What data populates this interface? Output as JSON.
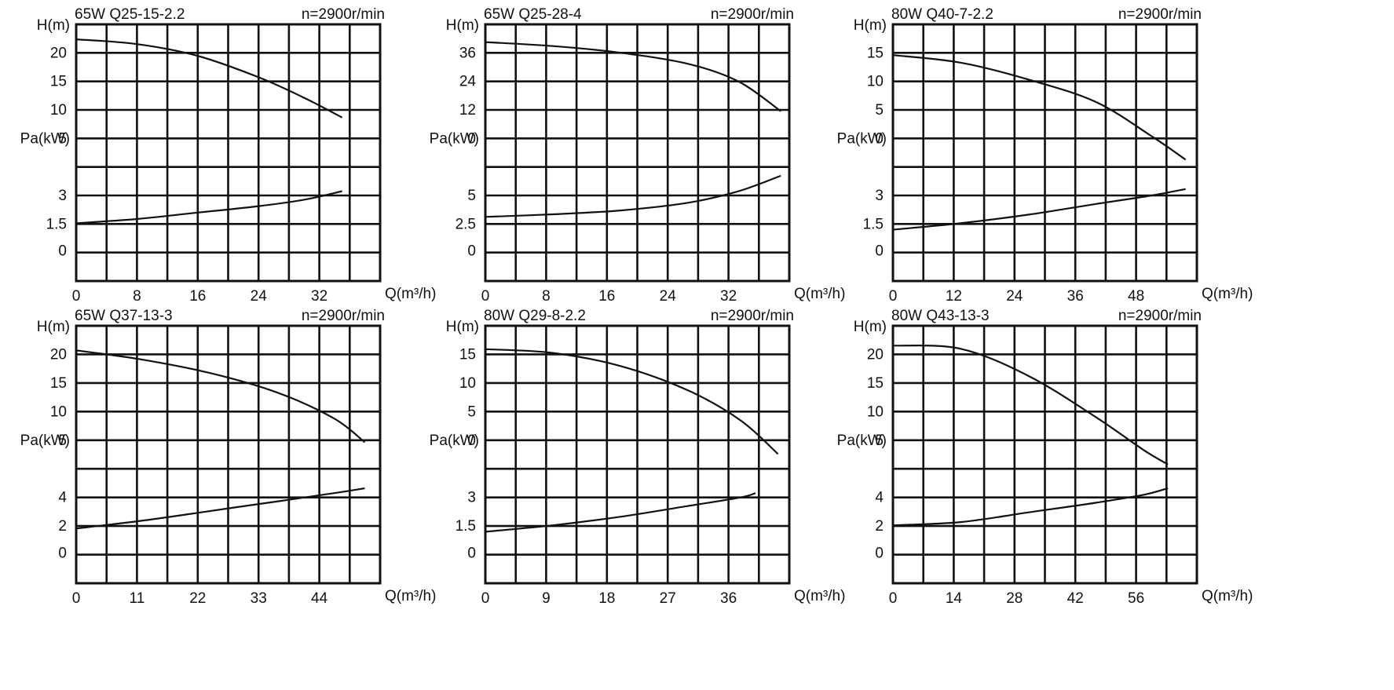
{
  "charts": [
    {
      "chart_data": {
        "type": "line",
        "model": "65W Q25-15-2.2",
        "speed": "n=2900r/min",
        "head_label": "H(m)",
        "power_label": "Pa(kW)",
        "flow_label": "Q(m³/h)",
        "x_ticks": [
          "0",
          "8",
          "16",
          "24",
          "32"
        ],
        "x_range": [
          0,
          40
        ],
        "head_ticks": [
          "20",
          "15",
          "10",
          "5"
        ],
        "power_ticks": [
          "3",
          "1.5",
          "0"
        ],
        "head_range": [
          -10,
          22.5
        ],
        "power_range": [
          0,
          6
        ],
        "series": [
          {
            "x": [
              0,
              8,
              16,
              24,
              30,
              35
            ],
            "values": [
              20.6,
              20,
              18.5,
              15.8,
              13.2,
              10.7
            ]
          },
          {
            "x": [
              0,
              8,
              16,
              24,
              30,
              35
            ],
            "values": [
              1.35,
              1.45,
              1.6,
              1.75,
              1.9,
              2.1
            ]
          }
        ]
      }
    },
    {
      "chart_data": {
        "type": "line",
        "model": "65W Q25-28-4",
        "speed": "n=2900r/min",
        "head_label": "H(m)",
        "power_label": "Pa(kW)",
        "flow_label": "Q(m³/h)",
        "x_ticks": [
          "0",
          "8",
          "16",
          "24",
          "32"
        ],
        "x_range": [
          0,
          36
        ],
        "head_ticks": [
          "36",
          "24",
          "12",
          "0"
        ],
        "power_ticks": [
          "5",
          "2.5",
          "0"
        ],
        "head_range": [
          -24,
          41
        ],
        "power_range": [
          0,
          10
        ],
        "series": [
          {
            "x": [
              0,
              8,
              16,
              24,
              30,
              35
            ],
            "values": [
              36.5,
              35.5,
              33.8,
              31,
              26.5,
              19
            ]
          },
          {
            "x": [
              0,
              8,
              16,
              24,
              30,
              35
            ],
            "values": [
              2.5,
              2.6,
              2.75,
              3.05,
              3.5,
              4.1
            ]
          }
        ]
      }
    },
    {
      "chart_data": {
        "type": "line",
        "model": "80W Q40-7-2.2",
        "speed": "n=2900r/min",
        "head_label": "H(m)",
        "power_label": "Pa(kW)",
        "flow_label": "Q(m³/h)",
        "x_ticks": [
          "0",
          "12",
          "24",
          "36",
          "48"
        ],
        "x_range": [
          0,
          54
        ],
        "head_ticks": [
          "15",
          "10",
          "5",
          "0"
        ],
        "power_ticks": [
          "3",
          "1.5",
          "0"
        ],
        "head_range": [
          -10,
          17.5
        ],
        "power_range": [
          0,
          6
        ],
        "series": [
          {
            "x": [
              0,
              12,
              24,
              36,
              46,
              52
            ],
            "values": [
              14.2,
              13.4,
              11.6,
              9.2,
              5.5,
              3
            ]
          },
          {
            "x": [
              0,
              12,
              24,
              36,
              46,
              52
            ],
            "values": [
              1.2,
              1.35,
              1.55,
              1.8,
              2,
              2.15
            ]
          }
        ]
      }
    },
    {
      "chart_data": {
        "type": "line",
        "model": "65W Q37-13-3",
        "speed": "n=2900r/min",
        "head_label": "H(m)",
        "power_label": "Pa(kW)",
        "flow_label": "Q(m³/h)",
        "x_ticks": [
          "0",
          "11",
          "22",
          "33",
          "44"
        ],
        "x_range": [
          0,
          49.5
        ],
        "head_ticks": [
          "20",
          "15",
          "10",
          "5"
        ],
        "power_ticks": [
          "4",
          "2",
          "0"
        ],
        "head_range": [
          -10,
          22.5
        ],
        "power_range": [
          0,
          8
        ],
        "series": [
          {
            "x": [
              0,
              11,
              22,
              33,
              42,
              47
            ],
            "values": [
              19.4,
              18.2,
              16.5,
              14,
              10.8,
              7.8
            ]
          },
          {
            "x": [
              0,
              11,
              22,
              33,
              42,
              47
            ],
            "values": [
              1.7,
              1.95,
              2.25,
              2.55,
              2.8,
              2.95
            ]
          }
        ]
      }
    },
    {
      "chart_data": {
        "type": "line",
        "model": "80W Q29-8-2.2",
        "speed": "n=2900r/min",
        "head_label": "H(m)",
        "power_label": "Pa(kW)",
        "flow_label": "Q(m³/h)",
        "x_ticks": [
          "0",
          "9",
          "18",
          "27",
          "36"
        ],
        "x_range": [
          0,
          40.5
        ],
        "head_ticks": [
          "15",
          "10",
          "5",
          "0"
        ],
        "power_ticks": [
          "3",
          "1.5",
          "0"
        ],
        "head_range": [
          -10,
          17.5
        ],
        "power_range": [
          0,
          6
        ],
        "series": [
          {
            "x": [
              0,
              9,
              18,
              27,
              34,
              39
            ],
            "values": [
              15,
              14.6,
              13.2,
              10.6,
              7.4,
              3.8
            ]
          },
          {
            "x": [
              0,
              9,
              18,
              27,
              34,
              36
            ],
            "values": [
              1.2,
              1.35,
              1.55,
              1.8,
              2,
              2.1
            ]
          }
        ]
      }
    },
    {
      "chart_data": {
        "type": "line",
        "model": "80W Q43-13-3",
        "speed": "n=2900r/min",
        "head_label": "H(m)",
        "power_label": "Pa(kW)",
        "flow_label": "Q(m³/h)",
        "x_ticks": [
          "0",
          "14",
          "28",
          "42",
          "56"
        ],
        "x_range": [
          0,
          63
        ],
        "head_ticks": [
          "20",
          "15",
          "10",
          "5"
        ],
        "power_ticks": [
          "4",
          "2",
          "0"
        ],
        "head_range": [
          -10,
          22.5
        ],
        "power_range": [
          0,
          8
        ],
        "series": [
          {
            "x": [
              0,
              14,
              28,
              42,
              52,
              57
            ],
            "values": [
              20,
              19.6,
              16.2,
              11,
              6.8,
              5
            ]
          },
          {
            "x": [
              0,
              14,
              28,
              42,
              52,
              57
            ],
            "values": [
              1.8,
              1.9,
              2.2,
              2.5,
              2.75,
              2.95
            ]
          }
        ]
      }
    }
  ]
}
